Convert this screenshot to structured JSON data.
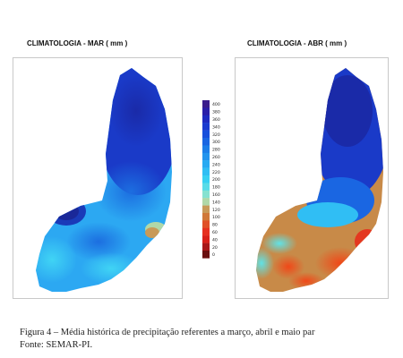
{
  "maps": [
    {
      "id": "mar",
      "title": "CLIMATOLOGIA - MAR ( mm )"
    },
    {
      "id": "abr",
      "title": "CLIMATOLOGIA - ABR ( mm )"
    }
  ],
  "colorbar": {
    "ticks": [
      "400",
      "380",
      "360",
      "340",
      "320",
      "300",
      "280",
      "260",
      "240",
      "220",
      "200",
      "180",
      "160",
      "140",
      "120",
      "100",
      "80",
      "60",
      "40",
      "20",
      "0"
    ],
    "colors": [
      "#3a1c8c",
      "#2a1ea8",
      "#1e2ac0",
      "#1a3ad0",
      "#1850dc",
      "#1a66e2",
      "#1c7ee8",
      "#2294ee",
      "#28aaf2",
      "#30bef4",
      "#38d0f2",
      "#58dce8",
      "#86e2d0",
      "#b0d8a8",
      "#c89a58",
      "#d07838",
      "#e05028",
      "#e63020",
      "#d82018",
      "#a81818",
      "#6a1010"
    ]
  },
  "caption": {
    "line1": "Figura 4 – Média histórica de precipitação referentes a março, abril e maio par",
    "line2": "Fonte: SEMAR-PI."
  }
}
